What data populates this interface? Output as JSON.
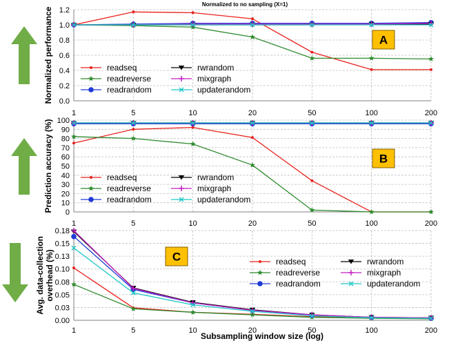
{
  "figure": {
    "title": "Normalized to no sampling (X=1)",
    "xlabel": "Subsampling window size (log)"
  },
  "colors": {
    "readseq": "#e8211c",
    "readreverse": "#2e8b2e",
    "readrandom": "#1f3ad6",
    "rwrandom": "#000000",
    "mixgraph": "#c21fc2",
    "updaterandom": "#1fc6c6",
    "arrow": "#70ad47",
    "badge_fill": "#ffc000",
    "grid": "#bfbfbf"
  },
  "chart_data": [
    {
      "id": "A",
      "type": "line",
      "badge": "A",
      "arrow": "up",
      "ylabel": "Normalized performance",
      "categories": [
        "1",
        "5",
        "10",
        "20",
        "50",
        "100",
        "200"
      ],
      "ylim": [
        0,
        1.2
      ],
      "yticks": [
        "0.0",
        "0.2",
        "0.4",
        "0.6",
        "0.8",
        "1.0",
        "1.2"
      ],
      "grid": true,
      "legend_position": "bottom-left",
      "series": [
        {
          "name": "readseq",
          "values": [
            1.0,
            1.17,
            1.16,
            1.08,
            0.64,
            0.41,
            0.41
          ]
        },
        {
          "name": "readreverse",
          "values": [
            1.0,
            0.99,
            0.97,
            0.84,
            0.56,
            0.56,
            0.55
          ]
        },
        {
          "name": "readrandom",
          "values": [
            1.0,
            1.01,
            1.02,
            1.02,
            1.02,
            1.02,
            1.03
          ]
        },
        {
          "name": "rwrandom",
          "values": [
            1.0,
            1.0,
            1.0,
            1.0,
            1.0,
            1.01,
            1.01
          ]
        },
        {
          "name": "mixgraph",
          "values": [
            1.0,
            1.0,
            1.01,
            1.01,
            1.01,
            1.01,
            1.02
          ]
        },
        {
          "name": "updaterandom",
          "values": [
            1.0,
            1.0,
            1.0,
            1.0,
            1.0,
            1.0,
            1.0
          ]
        }
      ]
    },
    {
      "id": "B",
      "type": "line",
      "badge": "B",
      "arrow": "up",
      "ylabel": "Prediction accuracy (%)",
      "categories": [
        "1",
        "5",
        "10",
        "20",
        "50",
        "100",
        "200"
      ],
      "ylim": [
        0,
        100
      ],
      "yticks": [
        "0",
        "10",
        "20",
        "30",
        "40",
        "50",
        "60",
        "70",
        "80",
        "90",
        "100"
      ],
      "grid": true,
      "legend_position": "bottom-left",
      "series": [
        {
          "name": "readseq",
          "values": [
            75,
            90,
            92,
            81,
            34,
            0,
            0
          ]
        },
        {
          "name": "readreverse",
          "values": [
            82,
            80,
            74,
            51,
            2,
            0,
            0
          ]
        },
        {
          "name": "readrandom",
          "values": [
            96,
            96,
            96,
            96,
            96,
            96,
            96
          ]
        },
        {
          "name": "rwrandom",
          "values": [
            97,
            97,
            97,
            97,
            97,
            97,
            97
          ]
        },
        {
          "name": "mixgraph",
          "values": [
            97,
            97,
            97,
            97,
            97,
            97,
            97
          ]
        },
        {
          "name": "updaterandom",
          "values": [
            97,
            97,
            97,
            97,
            97,
            97,
            97
          ]
        }
      ]
    },
    {
      "id": "C",
      "type": "line",
      "badge": "C",
      "arrow": "down",
      "ylabel_lines": [
        "Avg. data-collection",
        "overhead (%)"
      ],
      "categories": [
        "1",
        "5",
        "10",
        "20",
        "50",
        "100",
        "200"
      ],
      "ylim": [
        0,
        0.18
      ],
      "yticks": [
        "0.00",
        "0.03",
        "0.05",
        "0.08",
        "0.10",
        "0.13",
        "0.15",
        "0.18"
      ],
      "grid": true,
      "legend_position": "top-right",
      "series": [
        {
          "name": "readseq",
          "values": [
            0.105,
            0.025,
            0.016,
            0.012,
            0.007,
            0.005,
            0.004
          ]
        },
        {
          "name": "readreverse",
          "values": [
            0.072,
            0.023,
            0.016,
            0.011,
            0.006,
            0.004,
            0.003
          ]
        },
        {
          "name": "readrandom",
          "values": [
            0.168,
            0.062,
            0.035,
            0.02,
            0.01,
            0.006,
            0.004
          ]
        },
        {
          "name": "rwrandom",
          "values": [
            0.178,
            0.065,
            0.036,
            0.021,
            0.011,
            0.006,
            0.005
          ]
        },
        {
          "name": "mixgraph",
          "values": [
            0.18,
            0.064,
            0.035,
            0.02,
            0.011,
            0.006,
            0.005
          ]
        },
        {
          "name": "updaterandom",
          "values": [
            0.145,
            0.055,
            0.031,
            0.018,
            0.009,
            0.005,
            0.004
          ]
        }
      ]
    }
  ]
}
